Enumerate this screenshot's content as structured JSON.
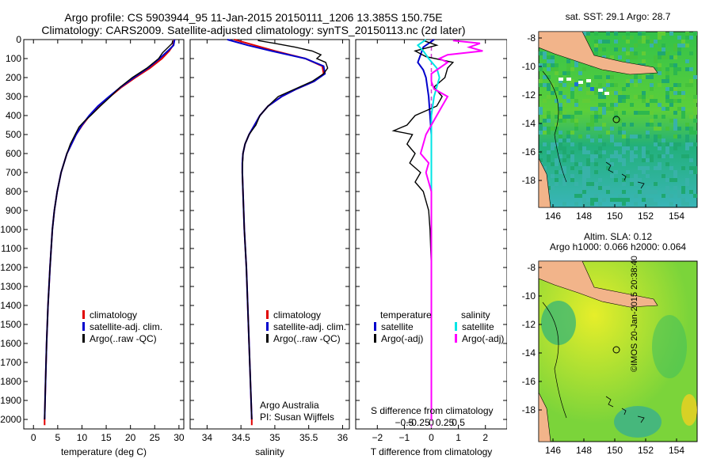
{
  "title": {
    "line1": "Argo profile: CS 5903944_95 11-Jan-2015 20150111_1206 13.385S 150.75E",
    "line2": "Climatology: CARS2009. Satellite-adjusted climatology: synTS_20150113.nc (2d later)"
  },
  "depth_ticks": [
    "0",
    "100",
    "200",
    "300",
    "400",
    "500",
    "600",
    "700",
    "800",
    "900",
    "1000",
    "1100",
    "1200",
    "1300",
    "1400",
    "1500",
    "1600",
    "1700",
    "1800",
    "1900",
    "2000"
  ],
  "colors": {
    "climatology": "#e00000",
    "satellite": "#0000cc",
    "argo": "#000000",
    "sal_satellite": "#00e5e5",
    "sal_argo": "#ff00ff"
  },
  "chart_data": [
    {
      "type": "line",
      "title": "",
      "xlabel": "temperature (deg C)",
      "ylabel": "depth",
      "xlim": [
        -2,
        31
      ],
      "ylim": [
        2050,
        0
      ],
      "xticks": [
        0,
        5,
        10,
        15,
        20,
        25,
        30
      ],
      "xtick_labels": [
        "0",
        "5",
        "10",
        "15",
        "20",
        "25",
        "30"
      ],
      "legend": [
        "climatology",
        "satellite-adj. clim.",
        "Argo(..raw -QC)"
      ],
      "series": [
        {
          "name": "climatology",
          "color": "#e00000",
          "depth": [
            0,
            30,
            60,
            100,
            150,
            200,
            250,
            300,
            350,
            400,
            450,
            500,
            600,
            700,
            800,
            900,
            1000,
            1200,
            1400,
            1600,
            1800,
            2000,
            2030
          ],
          "values": [
            29.0,
            28.8,
            28.0,
            26.5,
            24.0,
            21.0,
            18.2,
            15.8,
            13.4,
            11.6,
            10.1,
            8.8,
            6.9,
            5.7,
            4.9,
            4.3,
            3.9,
            3.4,
            3.0,
            2.7,
            2.5,
            2.3,
            2.3
          ]
        },
        {
          "name": "satellite-adj. clim.",
          "color": "#0000cc",
          "depth": [
            0,
            30,
            60,
            100,
            150,
            200,
            250,
            300,
            350,
            400,
            450,
            500,
            600,
            700,
            800,
            900,
            1000,
            1200,
            1400,
            1600,
            1800,
            2000
          ],
          "values": [
            29.1,
            28.9,
            27.7,
            26.0,
            23.6,
            20.7,
            18.0,
            15.6,
            13.3,
            11.5,
            10.0,
            8.8,
            6.9,
            5.7,
            4.9,
            4.3,
            3.9,
            3.4,
            3.0,
            2.7,
            2.5,
            2.3
          ]
        },
        {
          "name": "Argo(..raw -QC)",
          "color": "#000000",
          "depth": [
            5,
            20,
            40,
            70,
            100,
            150,
            200,
            250,
            300,
            350,
            400,
            430,
            460,
            500,
            550,
            600,
            700,
            800,
            900,
            1000,
            1200,
            1400,
            1600,
            1800,
            2000
          ],
          "values": [
            28.7,
            28.6,
            27.8,
            26.6,
            25.8,
            23.4,
            20.4,
            17.9,
            15.9,
            13.8,
            11.8,
            10.5,
            9.4,
            8.6,
            7.6,
            6.9,
            5.7,
            4.9,
            4.3,
            3.9,
            3.4,
            3.0,
            2.7,
            2.5,
            2.3
          ]
        }
      ]
    },
    {
      "type": "line",
      "title": "",
      "xlabel": "salinity",
      "ylabel": "",
      "xlim": [
        33.75,
        36.1
      ],
      "ylim": [
        2050,
        0
      ],
      "xticks": [
        34,
        34.5,
        35,
        35.5,
        36
      ],
      "xtick_labels": [
        "34",
        "34.5",
        "35",
        "35.5",
        "36"
      ],
      "legend": [
        "climatology",
        "satellite-adj. clim.",
        "Argo(..raw -QC)"
      ],
      "annotation": [
        "Argo Australia",
        "PI: Susan Wijffels"
      ],
      "series": [
        {
          "name": "climatology",
          "color": "#e00000",
          "depth": [
            0,
            30,
            60,
            100,
            140,
            180,
            220,
            260,
            300,
            350,
            400,
            450,
            500,
            550,
            600,
            650,
            700,
            800,
            1000,
            1200,
            1400,
            1600,
            1800,
            2000,
            2030
          ],
          "values": [
            34.4,
            34.7,
            35.0,
            35.45,
            35.7,
            35.72,
            35.58,
            35.32,
            35.1,
            34.9,
            34.78,
            34.7,
            34.62,
            34.56,
            34.53,
            34.52,
            34.52,
            34.53,
            34.55,
            34.58,
            34.6,
            34.62,
            34.64,
            34.66,
            34.66
          ]
        },
        {
          "name": "satellite-adj. clim.",
          "color": "#0000cc",
          "depth": [
            0,
            30,
            60,
            100,
            140,
            180,
            220,
            260,
            300,
            350,
            400,
            450,
            500,
            550,
            600,
            650,
            700,
            800,
            1000,
            1200,
            1400,
            1600,
            1800,
            2000
          ],
          "values": [
            34.3,
            34.6,
            34.95,
            35.45,
            35.72,
            35.74,
            35.58,
            35.32,
            35.1,
            34.9,
            34.78,
            34.7,
            34.62,
            34.56,
            34.53,
            34.52,
            34.52,
            34.53,
            34.55,
            34.58,
            34.6,
            34.62,
            34.64,
            34.66
          ]
        },
        {
          "name": "Argo(..raw -QC)",
          "color": "#000000",
          "depth": [
            5,
            20,
            40,
            60,
            80,
            100,
            120,
            150,
            180,
            220,
            260,
            300,
            350,
            400,
            450,
            500,
            550,
            600,
            700,
            800,
            1000,
            1200,
            1400,
            1600,
            1800,
            2000
          ],
          "values": [
            34.75,
            35.0,
            35.3,
            35.55,
            35.68,
            35.62,
            35.75,
            35.78,
            35.72,
            35.55,
            35.3,
            35.05,
            34.9,
            34.78,
            34.72,
            34.62,
            34.56,
            34.53,
            34.52,
            34.53,
            34.55,
            34.58,
            34.6,
            34.62,
            34.64,
            34.66
          ]
        }
      ]
    },
    {
      "type": "line",
      "title": "",
      "xlabel": "T difference from climatology",
      "xlabel_top": "S difference from climatology",
      "ylabel": "",
      "xlim": [
        -2.8,
        2.8
      ],
      "ylim": [
        2050,
        0
      ],
      "xticks": [
        -2,
        -1,
        0,
        1,
        2
      ],
      "xtick_labels": [
        "−2",
        "−1",
        "0",
        "1",
        "2"
      ],
      "sticks": [
        -1.0,
        -0.5,
        0,
        0.5,
        1.0
      ],
      "stick_labels": [
        "−0.5",
        "−0.25",
        "0",
        "0.25",
        "0.5"
      ],
      "legend_temperature": {
        "heading": "temperature",
        "items": [
          "satellite",
          "Argo(-adj)"
        ]
      },
      "legend_salinity": {
        "heading": "salinity",
        "items": [
          "satellite",
          "Argo(-adj)"
        ]
      },
      "series": [
        {
          "name": "temperature satellite",
          "color": "#0000cc",
          "depth": [
            0,
            40,
            80,
            120,
            160,
            200,
            300,
            400,
            500,
            600,
            800,
            1000,
            1400,
            1800,
            2000
          ],
          "values": [
            0.1,
            -0.3,
            -0.4,
            -0.5,
            -0.3,
            -0.2,
            -0.1,
            -0.05,
            0,
            0,
            0,
            0,
            0,
            0,
            0
          ]
        },
        {
          "name": "temperature Argo(-adj)",
          "color": "#000000",
          "depth": [
            5,
            30,
            60,
            90,
            120,
            150,
            200,
            250,
            300,
            350,
            400,
            450,
            480,
            500,
            550,
            600,
            650,
            700,
            750,
            800,
            850,
            900,
            1000,
            1200,
            1400,
            1600,
            1800,
            2000
          ],
          "values": [
            -0.3,
            0.2,
            -0.6,
            -0.2,
            0.8,
            0.6,
            0.5,
            0.1,
            0.4,
            0.2,
            -0.6,
            -0.9,
            -1.4,
            -0.7,
            -0.9,
            -0.6,
            -0.8,
            -0.4,
            -0.6,
            -0.3,
            -0.2,
            -0.1,
            -0.05,
            0,
            0,
            0,
            0,
            0
          ]
        },
        {
          "name": "salinity satellite",
          "color": "#00e5e5",
          "depth": [
            0,
            30,
            60,
            100,
            150,
            200,
            300,
            400,
            500,
            600,
            700,
            800,
            1000,
            1400,
            1800,
            2000
          ],
          "values": [
            -0.2,
            -0.5,
            -0.3,
            -0.1,
            0.2,
            0.3,
            0.1,
            0.0,
            0.0,
            0.0,
            0.0,
            0.0,
            0.0,
            0.0,
            0.0,
            0.0
          ]
        },
        {
          "name": "salinity Argo(-adj)",
          "color": "#ff00ff",
          "depth": [
            5,
            20,
            40,
            60,
            80,
            100,
            120,
            150,
            180,
            220,
            260,
            300,
            350,
            400,
            450,
            500,
            550,
            600,
            650,
            700,
            750,
            800,
            900,
            1000,
            1200,
            1600,
            2000
          ],
          "values": [
            0.8,
            1.8,
            1.4,
            1.9,
            0.6,
            0.3,
            0.6,
            0.3,
            0.0,
            0.0,
            0.1,
            0.6,
            0.4,
            0.2,
            0.0,
            -0.2,
            -0.3,
            -0.4,
            -0.1,
            -0.2,
            -0.1,
            0.0,
            0.0,
            0.0,
            0.0,
            0.0,
            0.0
          ]
        }
      ]
    }
  ],
  "maps": {
    "sst": {
      "title": "sat. SST: 29.1 Argo: 28.7",
      "xticks": [
        "146",
        "148",
        "150",
        "152",
        "154"
      ],
      "yticks": [
        "-8",
        "-10",
        "-12",
        "-14",
        "-16",
        "-18"
      ]
    },
    "sla": {
      "title_line1": "Altim. SLA: 0.12",
      "title_line2": "Argo h1000: 0.066 h2000: 0.064",
      "xticks": [
        "146",
        "148",
        "150",
        "152",
        "154"
      ],
      "yticks": [
        "-8",
        "-10",
        "-12",
        "-14",
        "-16",
        "-18"
      ]
    }
  },
  "credit": "©IMOS 20-Jan-2015 20:38:40"
}
